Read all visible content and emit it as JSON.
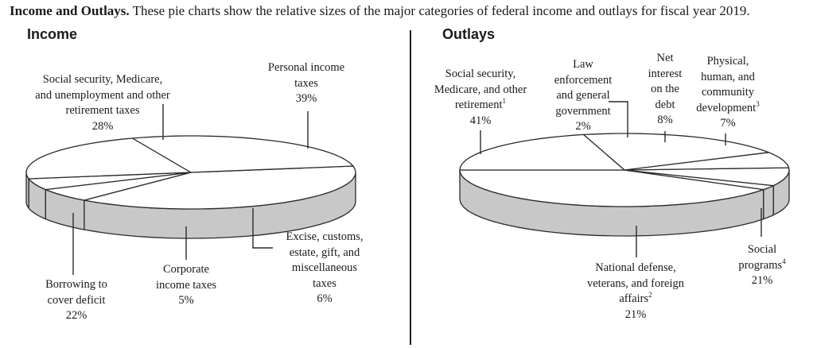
{
  "caption": {
    "bold": "Income and Outlays.",
    "rest": " These pie charts show the relative sizes of the major categories of federal income and outlays for fiscal year 2019."
  },
  "colors": {
    "top": "#ffffff",
    "side": "#c8c8c8",
    "stroke": "#2a2a2a"
  },
  "chart_data": [
    {
      "type": "pie",
      "title": "Income",
      "slices": [
        {
          "label": "Personal income taxes",
          "lines": [
            "Personal income",
            "taxes",
            "39%"
          ],
          "value": 39
        },
        {
          "label": "Excise, customs, estate, gift, and miscellaneous taxes",
          "lines": [
            "Excise, customs,",
            "estate, gift, and",
            "miscellaneous",
            "taxes",
            "6%"
          ],
          "value": 6
        },
        {
          "label": "Corporate income taxes",
          "lines": [
            "Corporate",
            "income taxes",
            "5%"
          ],
          "value": 5
        },
        {
          "label": "Borrowing to cover deficit",
          "lines": [
            "Borrowing to",
            "cover deficit",
            "22%"
          ],
          "value": 22
        },
        {
          "label": "Social security, Medicare, and unemployment and other retirement taxes",
          "lines": [
            "Social security, Medicare,",
            "and unemployment and other",
            "retirement taxes",
            "28%"
          ],
          "value": 28
        }
      ]
    },
    {
      "type": "pie",
      "title": "Outlays",
      "slices": [
        {
          "label": "Social security, Medicare, and other retirement",
          "lines": [
            "Social security,",
            "Medicare, and other",
            "retirement",
            "41%"
          ],
          "sup": "1",
          "sup_line": 2,
          "value": 41
        },
        {
          "label": "Law enforcement and general government",
          "lines": [
            "Law",
            "enforcement",
            "and general",
            "government",
            "2%"
          ],
          "value": 2
        },
        {
          "label": "Net interest on the debt",
          "lines": [
            "Net",
            "interest",
            "on the",
            "debt",
            "8%"
          ],
          "value": 8
        },
        {
          "label": "Physical, human, and community development",
          "lines": [
            "Physical,",
            "human, and",
            "community",
            "development",
            "7%"
          ],
          "sup": "3",
          "sup_line": 3,
          "value": 7
        },
        {
          "label": "Social programs",
          "lines": [
            "Social",
            "programs",
            "21%"
          ],
          "sup": "4",
          "sup_line": 1,
          "value": 21
        },
        {
          "label": "National defense, veterans, and foreign affairs",
          "lines": [
            "National defense,",
            "veterans, and foreign",
            "affairs",
            "21%"
          ],
          "sup": "2",
          "sup_line": 2,
          "value": 21
        }
      ]
    }
  ]
}
